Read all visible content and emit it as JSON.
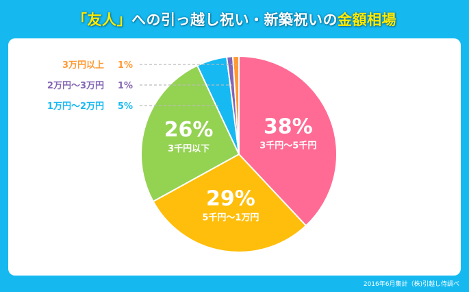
{
  "title": {
    "open_bracket": "「",
    "keyword": "友人",
    "close_bracket": "」",
    "middle": "への引っ越し祝い・新築祝いの",
    "highlight": "金額相場"
  },
  "footer": {
    "source": "2016年6月集計（株)引越し侍調べ"
  },
  "chart_data": {
    "type": "pie",
    "title": "「友人」への引っ越し祝い・新築祝いの金額相場",
    "slices": [
      {
        "label": "3千円～5千円",
        "value": 38,
        "percent_text": "38%",
        "color": "#ff6b94"
      },
      {
        "label": "5千円～1万円",
        "value": 29,
        "percent_text": "29%",
        "color": "#ffbe0b"
      },
      {
        "label": "3千円以下",
        "value": 26,
        "percent_text": "26%",
        "color": "#94d252"
      },
      {
        "label": "1万円～2万円",
        "value": 5,
        "percent_text": "5%",
        "color": "#17b9f2"
      },
      {
        "label": "2万円～3万円",
        "value": 1,
        "percent_text": "1%",
        "color": "#8465b5"
      },
      {
        "label": "3万円以上",
        "value": 1,
        "percent_text": "1%",
        "color": "#ff9933"
      }
    ]
  }
}
